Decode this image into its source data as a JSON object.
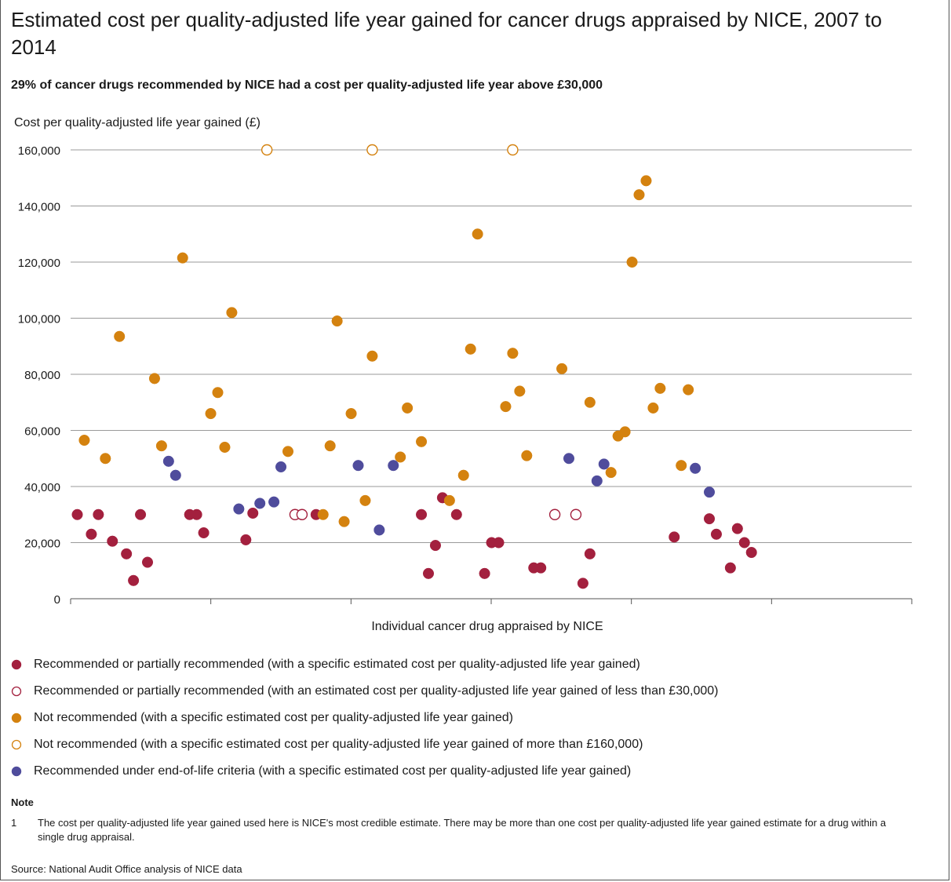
{
  "title": "Estimated cost per quality-adjusted life year gained for cancer drugs appraised by NICE, 2007 to 2014",
  "subtitle": "29% of cancer drugs recommended by NICE had a cost per quality-adjusted life year above £30,000",
  "chart_data": {
    "type": "scatter",
    "ylabel": "Cost per quality-adjusted life year gained (£)",
    "xlabel": "Individual cancer drug appraised by NICE",
    "ylim": [
      0,
      160000
    ],
    "yticks": [
      "0",
      "20,000",
      "40,000",
      "60,000",
      "80,000",
      "100,000",
      "120,000",
      "140,000",
      "160,000"
    ],
    "grid": true,
    "legend_position": "bottom",
    "series": [
      {
        "name": "Recommended or partially recommended (with a specific estimated cost per quality-adjusted life year gained)",
        "color": "#a3203e",
        "marker": "filled",
        "points": [
          [
            1,
            30000
          ],
          [
            3,
            23000
          ],
          [
            4,
            30000
          ],
          [
            6,
            20500
          ],
          [
            8,
            16000
          ],
          [
            9,
            6500
          ],
          [
            10,
            30000
          ],
          [
            11,
            13000
          ],
          [
            17,
            30000
          ],
          [
            18,
            30000
          ],
          [
            19,
            23500
          ],
          [
            25,
            21000
          ],
          [
            26,
            30500
          ],
          [
            35,
            30000
          ],
          [
            50,
            30000
          ],
          [
            51,
            9000
          ],
          [
            52,
            19000
          ],
          [
            53,
            36000
          ],
          [
            55,
            30000
          ],
          [
            59,
            9000
          ],
          [
            60,
            20000
          ],
          [
            61,
            20000
          ],
          [
            66,
            11000
          ],
          [
            67,
            11000
          ],
          [
            73,
            5500
          ],
          [
            74,
            16000
          ],
          [
            86,
            22000
          ],
          [
            91,
            28500
          ],
          [
            92,
            23000
          ],
          [
            94,
            11000
          ],
          [
            95,
            25000
          ],
          [
            96,
            20000
          ],
          [
            97,
            16500
          ]
        ]
      },
      {
        "name": "Recommended or partially recommended (with an estimated cost per quality-adjusted life year gained of less than £30,000)",
        "color": "#a3203e",
        "marker": "open",
        "points": [
          [
            32,
            30000
          ],
          [
            33,
            30000
          ],
          [
            69,
            30000
          ],
          [
            72,
            30000
          ]
        ]
      },
      {
        "name": "Not recommended (with a specific estimated cost per quality-adjusted life year gained)",
        "color": "#d4820f",
        "marker": "filled",
        "points": [
          [
            2,
            56500
          ],
          [
            5,
            50000
          ],
          [
            7,
            93500
          ],
          [
            12,
            78500
          ],
          [
            13,
            54500
          ],
          [
            16,
            121500
          ],
          [
            20,
            66000
          ],
          [
            21,
            73500
          ],
          [
            22,
            54000
          ],
          [
            23,
            102000
          ],
          [
            31,
            52500
          ],
          [
            36,
            30000
          ],
          [
            37,
            54500
          ],
          [
            38,
            99000
          ],
          [
            39,
            27500
          ],
          [
            40,
            66000
          ],
          [
            42,
            35000
          ],
          [
            43,
            86500
          ],
          [
            47,
            50500
          ],
          [
            48,
            68000
          ],
          [
            50,
            56000
          ],
          [
            54,
            35000
          ],
          [
            56,
            44000
          ],
          [
            57,
            89000
          ],
          [
            58,
            130000
          ],
          [
            62,
            68500
          ],
          [
            63,
            87500
          ],
          [
            64,
            74000
          ],
          [
            65,
            51000
          ],
          [
            70,
            82000
          ],
          [
            74,
            70000
          ],
          [
            77,
            45000
          ],
          [
            78,
            58000
          ],
          [
            79,
            59500
          ],
          [
            80,
            120000
          ],
          [
            81,
            144000
          ],
          [
            82,
            149000
          ],
          [
            83,
            68000
          ],
          [
            84,
            75000
          ],
          [
            87,
            47500
          ],
          [
            88,
            74500
          ]
        ]
      },
      {
        "name": "Not recommended (with a specific estimated cost per quality-adjusted life year gained of more than £160,000)",
        "color": "#d4820f",
        "marker": "open",
        "points": [
          [
            28,
            160000
          ],
          [
            43,
            160000
          ],
          [
            63,
            160000
          ]
        ]
      },
      {
        "name": "Recommended under end-of-life criteria (with a specific estimated cost per quality-adjusted life year gained)",
        "color": "#4f4c9c",
        "marker": "filled",
        "points": [
          [
            14,
            49000
          ],
          [
            15,
            44000
          ],
          [
            24,
            32000
          ],
          [
            27,
            34000
          ],
          [
            29,
            34500
          ],
          [
            30,
            47000
          ],
          [
            41,
            47500
          ],
          [
            44,
            24500
          ],
          [
            46,
            47500
          ],
          [
            71,
            50000
          ],
          [
            75,
            42000
          ],
          [
            76,
            48000
          ],
          [
            89,
            46500
          ],
          [
            91,
            38000
          ]
        ]
      }
    ]
  },
  "note": {
    "heading": "Note",
    "number": "1",
    "text": "The cost per quality-adjusted life year gained used here is NICE's most credible estimate. There may be more than one cost per quality-adjusted life year gained estimate for a drug within a single drug appraisal."
  },
  "source": "Source: National Audit Office analysis of NICE data"
}
